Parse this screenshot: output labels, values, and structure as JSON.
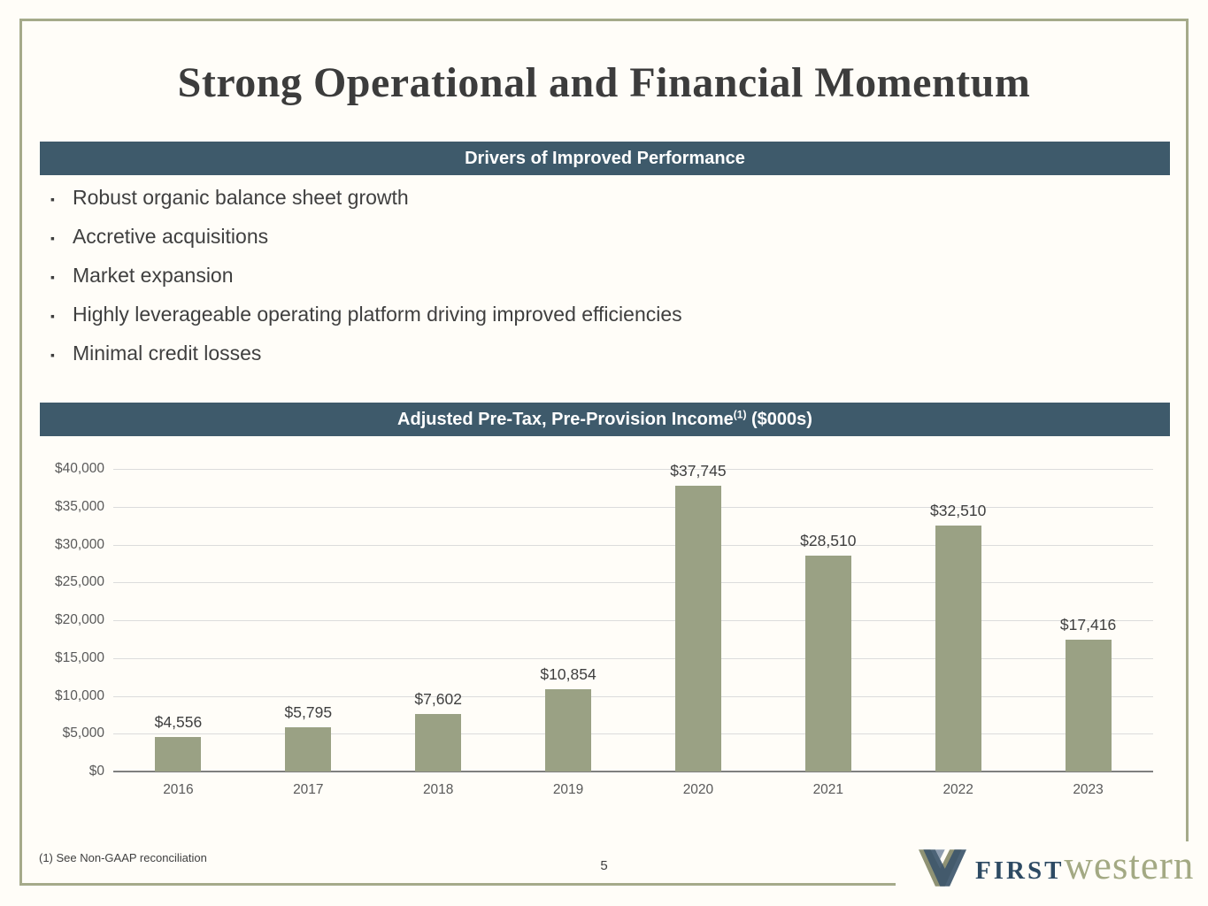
{
  "slide": {
    "title": "Strong Operational and Financial Momentum",
    "page_number": "5",
    "footnote": "(1) See Non-GAAP reconciliation"
  },
  "drivers_section": {
    "header": "Drivers of Improved Performance",
    "bullets": [
      "Robust organic balance sheet growth",
      "Accretive acquisitions",
      "Market expansion",
      "Highly leverageable operating platform driving improved efficiencies",
      "Minimal credit losses"
    ]
  },
  "income_section": {
    "header_main": "Adjusted Pre-Tax, Pre-Provision Income",
    "header_sup": "(1)",
    "header_suffix": " ($000s)"
  },
  "chart_data": {
    "type": "bar",
    "title": "Adjusted Pre-Tax, Pre-Provision Income ($000s)",
    "categories": [
      "2016",
      "2017",
      "2018",
      "2019",
      "2020",
      "2021",
      "2022",
      "2023"
    ],
    "values": [
      4556,
      5795,
      7602,
      10854,
      37745,
      28510,
      32510,
      17416
    ],
    "value_labels": [
      "$4,556",
      "$5,795",
      "$7,602",
      "$10,854",
      "$37,745",
      "$28,510",
      "$32,510",
      "$17,416"
    ],
    "xlabel": "",
    "ylabel": "",
    "ylim": [
      0,
      40000
    ],
    "ytick_step": 5000,
    "ytick_labels": [
      "$0",
      "$5,000",
      "$10,000",
      "$15,000",
      "$20,000",
      "$25,000",
      "$30,000",
      "$35,000",
      "$40,000"
    ],
    "grid": true,
    "legend_position": "none",
    "bar_color": "#9aa184"
  },
  "logo": {
    "first": "FIRST",
    "western": "western",
    "mark": "w-monogram-icon"
  },
  "colors": {
    "banner_bg": "#3e5a6b",
    "banner_text": "#ffffff",
    "bar": "#9aa184",
    "frame_border": "#a5aa8a",
    "title_text": "#3c3c3c",
    "axis_text": "#595959",
    "gridline": "#dcdcdc",
    "logo_navy": "#2d4a63",
    "logo_olive": "#a3a983"
  }
}
